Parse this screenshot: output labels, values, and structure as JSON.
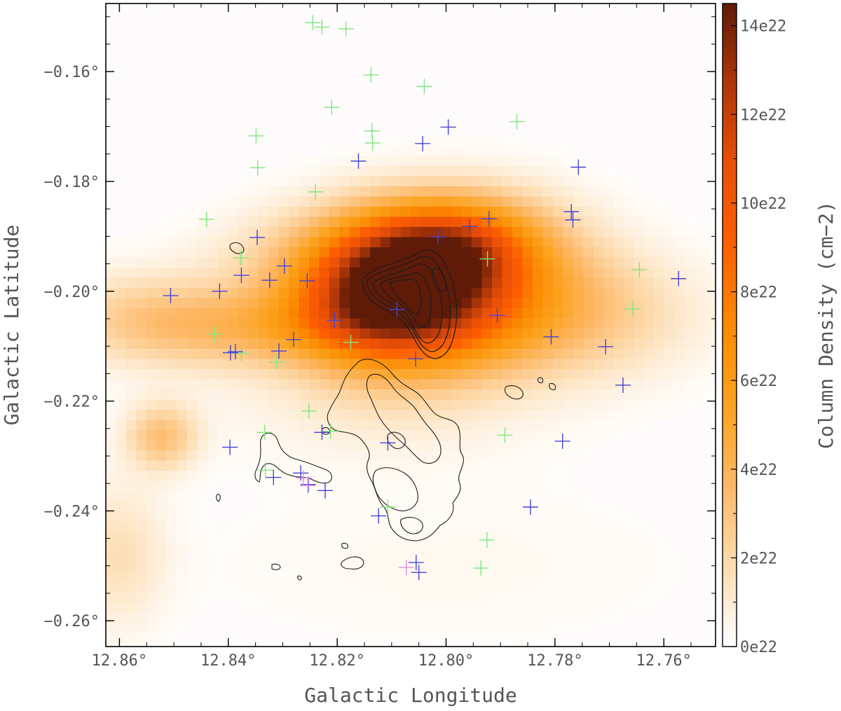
{
  "chart_data": {
    "type": "heatmap",
    "title": "",
    "xlabel": "Galactic Longitude",
    "ylabel": "Galactic Latitude",
    "colorbar_label": "Column Density (cm−2)",
    "x_axis": {
      "range_deg": [
        12.8625,
        12.7505
      ],
      "ticks": [
        12.86,
        12.84,
        12.82,
        12.8,
        12.78,
        12.76
      ],
      "tick_labels": [
        "12.86°",
        "12.84°",
        "12.82°",
        "12.80°",
        "12.78°",
        "12.76°"
      ]
    },
    "y_axis": {
      "range_deg": [
        -0.2647,
        -0.1476
      ],
      "ticks": [
        -0.16,
        -0.18,
        -0.2,
        -0.22,
        -0.24,
        -0.26
      ],
      "tick_labels": [
        "−0.16°",
        "−0.18°",
        "−0.20°",
        "−0.22°",
        "−0.24°",
        "−0.26°"
      ]
    },
    "colorbar": {
      "range": [
        0,
        14.5
      ],
      "ticks": [
        0,
        2,
        4,
        6,
        8,
        10,
        12,
        14
      ],
      "tick_labels": [
        "0e22",
        "2e22",
        "4e22",
        "6e22",
        "8e22",
        "10e22",
        "12e22",
        "14e22"
      ],
      "colormap": [
        "#ffffff",
        "#fddcb0",
        "#fdb866",
        "#fca21e",
        "#fb8a02",
        "#fd5e00",
        "#e95008",
        "#b03609",
        "#5f1b08"
      ]
    },
    "column_density_components": [
      {
        "l": 12.8115,
        "b": -0.1995,
        "amp": 14.0,
        "sigma_l": 0.011,
        "sigma_b": 0.0085
      },
      {
        "l": 12.7995,
        "b": -0.1925,
        "amp": 7.5,
        "sigma_l": 0.01,
        "sigma_b": 0.006
      },
      {
        "l": 12.791,
        "b": -0.1935,
        "amp": 3.5,
        "sigma_l": 0.012,
        "sigma_b": 0.008
      },
      {
        "l": 12.797,
        "b": -0.2055,
        "amp": 4.5,
        "sigma_l": 0.012,
        "sigma_b": 0.007
      },
      {
        "l": 12.8325,
        "b": -0.2065,
        "amp": 3.3,
        "sigma_l": 0.018,
        "sigma_b": 0.005
      },
      {
        "l": 12.8555,
        "b": -0.2045,
        "amp": 1.8,
        "sigma_l": 0.012,
        "sigma_b": 0.006
      },
      {
        "l": 12.775,
        "b": -0.204,
        "amp": 2.6,
        "sigma_l": 0.014,
        "sigma_b": 0.008
      },
      {
        "l": 12.8522,
        "b": -0.2265,
        "amp": 3.2,
        "sigma_l": 0.0045,
        "sigma_b": 0.0042
      },
      {
        "l": 12.8325,
        "b": -0.1935,
        "amp": 1.0,
        "sigma_l": 0.01,
        "sigma_b": 0.006
      },
      {
        "l": 12.86,
        "b": -0.248,
        "amp": 1.6,
        "sigma_l": 0.006,
        "sigma_b": 0.009
      },
      {
        "l": 12.811,
        "b": -0.219,
        "amp": 1.1,
        "sigma_l": 0.02,
        "sigma_b": 0.008
      },
      {
        "l": 12.8,
        "b": -0.25,
        "amp": 0.35,
        "sigma_l": 0.03,
        "sigma_b": 0.01
      }
    ],
    "source_markers": {
      "green": [
        [
          12.8245,
          -0.1511
        ],
        [
          12.8228,
          -0.1519
        ],
        [
          12.8184,
          -0.1522
        ],
        [
          12.8138,
          -0.1606
        ],
        [
          12.804,
          -0.1627
        ],
        [
          12.821,
          -0.1665
        ],
        [
          12.787,
          -0.1691
        ],
        [
          12.8136,
          -0.1708
        ],
        [
          12.8135,
          -0.173
        ],
        [
          12.8349,
          -0.1717
        ],
        [
          12.8346,
          -0.1775
        ],
        [
          12.824,
          -0.1819
        ],
        [
          12.844,
          -0.1869
        ],
        [
          12.8377,
          -0.1939
        ],
        [
          12.7924,
          -0.1941
        ],
        [
          12.7645,
          -0.1961
        ],
        [
          12.7657,
          -0.2032
        ],
        [
          12.8425,
          -0.2078
        ],
        [
          12.8376,
          -0.2113
        ],
        [
          12.8311,
          -0.2129
        ],
        [
          12.8175,
          -0.2093
        ],
        [
          12.8252,
          -0.2218
        ],
        [
          12.8333,
          -0.2257
        ],
        [
          12.8212,
          -0.2255
        ],
        [
          12.7892,
          -0.2262
        ],
        [
          12.8332,
          -0.2326
        ],
        [
          12.8107,
          -0.2393
        ],
        [
          12.7925,
          -0.2453
        ],
        [
          12.7936,
          -0.2504
        ]
      ],
      "blue": [
        [
          12.7996,
          -0.1701
        ],
        [
          12.8043,
          -0.1731
        ],
        [
          12.8161,
          -0.1763
        ],
        [
          12.7757,
          -0.1774
        ],
        [
          12.777,
          -0.1855
        ],
        [
          12.7767,
          -0.187
        ],
        [
          12.7957,
          -0.1882
        ],
        [
          12.7921,
          -0.1868
        ],
        [
          12.8015,
          -0.1901
        ],
        [
          12.8347,
          -0.1902
        ],
        [
          12.8297,
          -0.1954
        ],
        [
          12.8376,
          -0.1971
        ],
        [
          12.8324,
          -0.198
        ],
        [
          12.8255,
          -0.1981
        ],
        [
          12.7573,
          -0.1977
        ],
        [
          12.8506,
          -0.2008
        ],
        [
          12.8416,
          -0.2
        ],
        [
          12.809,
          -0.2033
        ],
        [
          12.8205,
          -0.2053
        ],
        [
          12.7906,
          -0.2044
        ],
        [
          12.7807,
          -0.2083
        ],
        [
          12.7707,
          -0.2101
        ],
        [
          12.828,
          -0.2088
        ],
        [
          12.8307,
          -0.2109
        ],
        [
          12.8387,
          -0.211
        ],
        [
          12.8396,
          -0.2112
        ],
        [
          12.8056,
          -0.2123
        ],
        [
          12.7675,
          -0.2171
        ],
        [
          12.8228,
          -0.2257
        ],
        [
          12.8397,
          -0.2284
        ],
        [
          12.8107,
          -0.2276
        ],
        [
          12.7786,
          -0.2273
        ],
        [
          12.8317,
          -0.2339
        ],
        [
          12.8267,
          -0.2331
        ],
        [
          12.8253,
          -0.2352
        ],
        [
          12.8222,
          -0.2363
        ],
        [
          12.7845,
          -0.2393
        ],
        [
          12.8124,
          -0.2409
        ],
        [
          12.8055,
          -0.2494
        ],
        [
          12.805,
          -0.2512
        ]
      ],
      "magenta": [
        [
          12.8262,
          -0.234
        ],
        [
          12.8254,
          -0.2354
        ],
        [
          12.8073,
          -0.2503
        ]
      ]
    },
    "colors": {
      "green_marker": "#7ee87e",
      "blue_marker": "#4444d8",
      "magenta_marker": "#e58ae5",
      "contour": "#1e1e1e"
    }
  }
}
